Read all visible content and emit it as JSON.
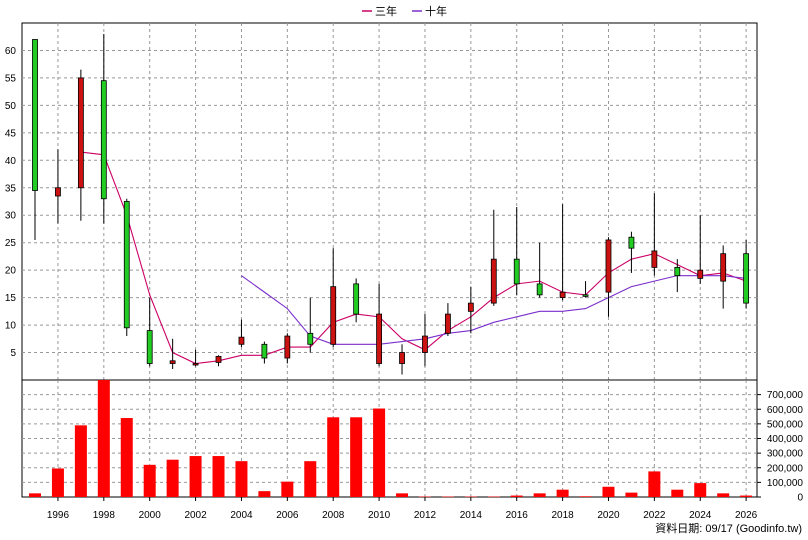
{
  "chart_data": [
    {
      "type": "candlestick",
      "legend": [
        {
          "name": "三年",
          "color": "#cc0066"
        },
        {
          "name": "十年",
          "color": "#7a2fcc"
        }
      ],
      "legend_position": "top-center",
      "grid": true,
      "ylim": [
        0,
        65
      ],
      "y_ticks": [
        5,
        10,
        15,
        20,
        25,
        30,
        35,
        40,
        45,
        50,
        55,
        60
      ],
      "x_range": [
        1995,
        2026.3
      ],
      "up_color": "#22cc22",
      "down_color": "#cc1111",
      "candles": [
        {
          "x": 1995,
          "open": 34.5,
          "high": 62,
          "low": 25.5,
          "close": 62
        },
        {
          "x": 1996,
          "open": 35,
          "high": 42,
          "low": 28.5,
          "close": 33.5
        },
        {
          "x": 1997,
          "open": 55,
          "high": 56.5,
          "low": 29,
          "close": 35
        },
        {
          "x": 1998,
          "open": 33,
          "high": 63,
          "low": 28.5,
          "close": 54.5
        },
        {
          "x": 1999,
          "open": 9.5,
          "high": 33,
          "low": 8,
          "close": 32.5
        },
        {
          "x": 2000,
          "open": 3,
          "high": 15,
          "low": 2.5,
          "close": 9
        },
        {
          "x": 2001,
          "open": 3.5,
          "high": 7.5,
          "low": 2,
          "close": 3
        },
        {
          "x": 2002,
          "open": 3,
          "high": 5.5,
          "low": 2.5,
          "close": 2.8
        },
        {
          "x": 2003,
          "open": 4.3,
          "high": 4.5,
          "low": 2.5,
          "close": 3.2
        },
        {
          "x": 2004,
          "open": 7.8,
          "high": 11,
          "low": 6,
          "close": 6.5
        },
        {
          "x": 2005,
          "open": 4,
          "high": 7,
          "low": 3,
          "close": 6.5
        },
        {
          "x": 2006,
          "open": 8,
          "high": 8.5,
          "low": 3,
          "close": 4
        },
        {
          "x": 2007,
          "open": 6.5,
          "high": 15,
          "low": 5,
          "close": 8.5
        },
        {
          "x": 2008,
          "open": 17,
          "high": 24,
          "low": 6,
          "close": 6.5
        },
        {
          "x": 2009,
          "open": 12,
          "high": 18.5,
          "low": 10.5,
          "close": 17.5
        },
        {
          "x": 2010,
          "open": 12,
          "high": 17.5,
          "low": 2.5,
          "close": 3
        },
        {
          "x": 2011,
          "open": 5,
          "high": 6.5,
          "low": 1,
          "close": 3
        },
        {
          "x": 2012,
          "open": 8,
          "high": 12,
          "low": 2.5,
          "close": 5
        },
        {
          "x": 2013,
          "open": 12,
          "high": 14,
          "low": 8,
          "close": 8.5
        },
        {
          "x": 2014,
          "open": 14,
          "high": 17,
          "low": 8.5,
          "close": 12.5
        },
        {
          "x": 2015,
          "open": 22,
          "high": 31,
          "low": 13.5,
          "close": 14
        },
        {
          "x": 2016,
          "open": 17.5,
          "high": 31.5,
          "low": 15.5,
          "close": 22
        },
        {
          "x": 2017,
          "open": 15.5,
          "high": 25,
          "low": 15,
          "close": 17.5
        },
        {
          "x": 2018,
          "open": 16,
          "high": 32,
          "low": 14.5,
          "close": 15
        },
        {
          "x": 2019,
          "open": 15.5,
          "high": 18,
          "low": 15,
          "close": 15.5
        },
        {
          "x": 2020,
          "open": 25.5,
          "high": 26,
          "low": 11.5,
          "close": 16
        },
        {
          "x": 2021,
          "open": 24,
          "high": 27,
          "low": 19.5,
          "close": 26
        },
        {
          "x": 2022,
          "open": 23.5,
          "high": 34,
          "low": 19,
          "close": 20.5
        },
        {
          "x": 2023,
          "open": 19,
          "high": 22,
          "low": 16,
          "close": 20.5
        },
        {
          "x": 2024,
          "open": 20,
          "high": 30,
          "low": 17.5,
          "close": 18.5
        },
        {
          "x": 2025,
          "open": 23,
          "high": 24.5,
          "low": 13,
          "close": 18
        },
        {
          "x": 2026,
          "open": 14,
          "high": 25.5,
          "low": 13,
          "close": 23
        }
      ],
      "series": [
        {
          "name": "三年",
          "color": "#cc0066",
          "x": [
            1997,
            1998,
            1999,
            2000,
            2001,
            2002,
            2003,
            2004,
            2005,
            2006,
            2007,
            2008,
            2009,
            2010,
            2011,
            2012,
            2013,
            2014,
            2015,
            2016,
            2017,
            2018,
            2019,
            2020,
            2021,
            2022,
            2023,
            2024,
            2025,
            2026
          ],
          "values": [
            41.5,
            41,
            30,
            15.5,
            5,
            3,
            3.5,
            4.5,
            4.5,
            6,
            6,
            10.5,
            12,
            11.5,
            7.5,
            5.5,
            9,
            11.5,
            15,
            17.5,
            18,
            16,
            15.5,
            19.5,
            22,
            23,
            21,
            19,
            19.5,
            18
          ]
        },
        {
          "name": "十年",
          "color": "#7a2fcc",
          "x": [
            2004,
            2005,
            2006,
            2007,
            2008,
            2009,
            2010,
            2011,
            2012,
            2013,
            2014,
            2015,
            2016,
            2017,
            2018,
            2019,
            2020,
            2021,
            2022,
            2023,
            2024,
            2025,
            2026
          ],
          "values": [
            19,
            16,
            13,
            8,
            6.5,
            6.5,
            6.5,
            7,
            7.5,
            8.5,
            9,
            10.5,
            11.5,
            12.5,
            12.5,
            13,
            15,
            17,
            18,
            19,
            19,
            19,
            18.5
          ]
        }
      ]
    },
    {
      "type": "bar",
      "ylim": [
        0,
        800000
      ],
      "y_ticks": [
        0,
        100000,
        200000,
        300000,
        400000,
        500000,
        600000,
        700000
      ],
      "y_tick_labels": [
        "0",
        "100,000",
        "200,000",
        "300,000",
        "400,000",
        "500,000",
        "600,000",
        "700,000"
      ],
      "x_ticks": [
        1996,
        1998,
        2000,
        2002,
        2004,
        2006,
        2008,
        2010,
        2012,
        2014,
        2016,
        2018,
        2020,
        2022,
        2024,
        2026
      ],
      "bar_color": "#ff0000",
      "x": [
        1995,
        1996,
        1997,
        1998,
        1999,
        2000,
        2001,
        2002,
        2003,
        2004,
        2005,
        2006,
        2007,
        2008,
        2009,
        2010,
        2011,
        2012,
        2013,
        2014,
        2015,
        2016,
        2017,
        2018,
        2019,
        2020,
        2021,
        2022,
        2023,
        2024,
        2025,
        2026
      ],
      "values": [
        25000,
        195000,
        490000,
        800000,
        540000,
        220000,
        255000,
        280000,
        280000,
        245000,
        40000,
        105000,
        245000,
        545000,
        545000,
        605000,
        25000,
        3000,
        3000,
        3000,
        3000,
        10000,
        25000,
        50000,
        5000,
        70000,
        30000,
        175000,
        50000,
        95000,
        25000,
        10000
      ]
    }
  ],
  "footer": {
    "source": "資料日期: 09/17  (Goodinfo.tw)"
  }
}
